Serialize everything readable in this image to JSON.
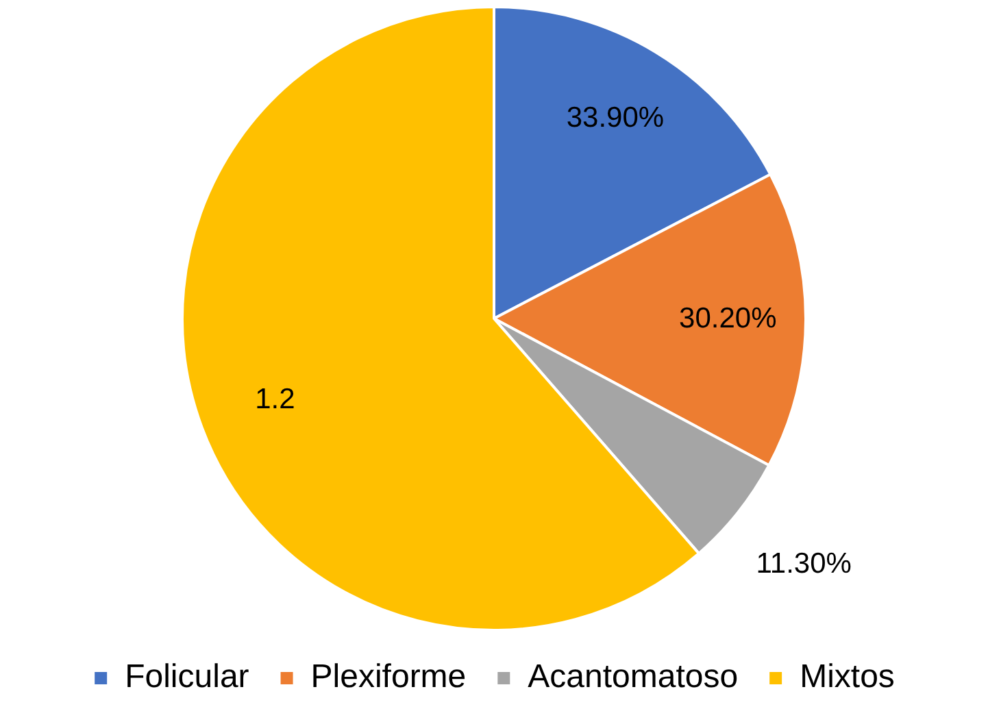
{
  "chart_data": {
    "type": "pie",
    "categories": [
      "Folicular",
      "Plexiforme",
      "Acantomatoso",
      "Mixtos"
    ],
    "values": [
      0.339,
      0.302,
      0.113,
      1.2
    ],
    "value_labels": [
      "33.90%",
      "30.20%",
      "11.30%",
      "1.2"
    ],
    "colors": [
      "#4472c4",
      "#ed7d31",
      "#a5a5a5",
      "#ffc000"
    ],
    "legend": "bottom"
  }
}
